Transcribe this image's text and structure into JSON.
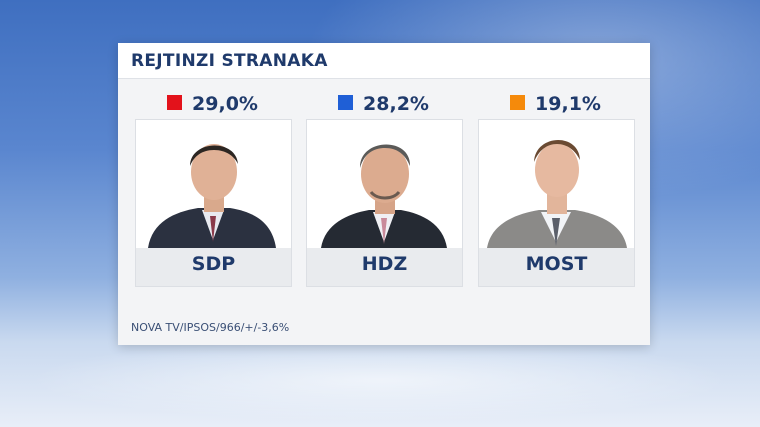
{
  "chart_data": {
    "type": "bar",
    "title": "REJTINZI STRANAKA",
    "categories": [
      "SDP",
      "HDZ",
      "MOST"
    ],
    "values": [
      29.0,
      28.2,
      19.1
    ],
    "value_labels": [
      "29,0%",
      "28,2%",
      "19,1%"
    ],
    "colors": [
      "#e3121b",
      "#1f5fd6",
      "#f58a0b"
    ],
    "source": "NOVA TV/IPSOS/966/+/-3,6%",
    "legend": "none",
    "grid": false
  },
  "cards": [
    {
      "party": "SDP",
      "value_label": "29,0%",
      "color": "#e3121b",
      "photo_icon": "person-portrait-icon"
    },
    {
      "party": "HDZ",
      "value_label": "28,2%",
      "color": "#1f5fd6",
      "photo_icon": "person-portrait-icon"
    },
    {
      "party": "MOST",
      "value_label": "19,1%",
      "color": "#f58a0b",
      "photo_icon": "person-portrait-icon"
    }
  ]
}
